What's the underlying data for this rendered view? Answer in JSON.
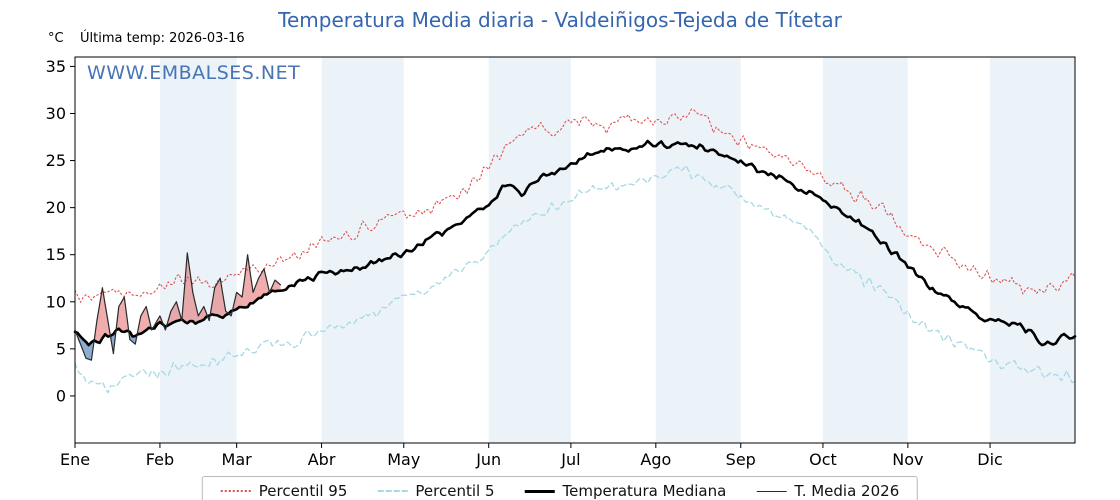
{
  "chart_data": {
    "type": "line",
    "title": "Temperatura Media diaria - Valdeiñigos-Tejeda de Títetar",
    "unit_label": "°C",
    "last_temp_label": "Última temp: 2026-03-16",
    "watermark": "WWW.EMBALSES.NET",
    "x_tick_labels": [
      "Ene",
      "Feb",
      "Mar",
      "Abr",
      "May",
      "Jun",
      "Jul",
      "Ago",
      "Sep",
      "Oct",
      "Nov",
      "Dic"
    ],
    "month_start_days": [
      0,
      31,
      59,
      90,
      120,
      151,
      181,
      212,
      243,
      273,
      304,
      334
    ],
    "days_in_year": 365,
    "ylim": [
      -5,
      36
    ],
    "yticks": [
      0,
      5,
      10,
      15,
      20,
      25,
      30,
      35
    ],
    "band_color": "#ebf3f9",
    "fills": {
      "above_color": "rgba(226,106,106,0.55)",
      "below_color": "rgba(93,137,186,0.70)"
    },
    "series": [
      {
        "name": "Percentil 95",
        "color": "#e05252",
        "style": "dotted",
        "noise": 0.9,
        "anchors": [
          [
            0,
            11
          ],
          [
            6,
            10
          ],
          [
            12,
            11.5
          ],
          [
            20,
            10.5
          ],
          [
            31,
            11.5
          ],
          [
            40,
            12.5
          ],
          [
            50,
            12
          ],
          [
            59,
            13
          ],
          [
            68,
            13.5
          ],
          [
            75,
            14.5
          ],
          [
            82,
            15
          ],
          [
            90,
            16.5
          ],
          [
            100,
            17
          ],
          [
            110,
            18.5
          ],
          [
            120,
            19
          ],
          [
            128,
            19.5
          ],
          [
            135,
            20.5
          ],
          [
            143,
            22
          ],
          [
            151,
            24.5
          ],
          [
            160,
            27
          ],
          [
            168,
            28.5
          ],
          [
            175,
            28
          ],
          [
            181,
            29
          ],
          [
            188,
            29.5
          ],
          [
            195,
            28.5
          ],
          [
            202,
            29.5
          ],
          [
            209,
            29
          ],
          [
            216,
            29.5
          ],
          [
            223,
            30
          ],
          [
            230,
            29
          ],
          [
            237,
            28
          ],
          [
            243,
            27
          ],
          [
            250,
            26.5
          ],
          [
            258,
            25.5
          ],
          [
            265,
            24.5
          ],
          [
            273,
            23
          ],
          [
            280,
            22
          ],
          [
            288,
            21
          ],
          [
            296,
            19.5
          ],
          [
            304,
            17.5
          ],
          [
            312,
            16
          ],
          [
            320,
            14.5
          ],
          [
            328,
            13.5
          ],
          [
            334,
            12.5
          ],
          [
            342,
            12
          ],
          [
            350,
            11
          ],
          [
            357,
            11.5
          ],
          [
            364,
            12.5
          ]
        ]
      },
      {
        "name": "Percentil 5",
        "color": "#a6d9e4",
        "style": "dashed",
        "noise": 0.8,
        "anchors": [
          [
            0,
            3.5
          ],
          [
            5,
            1
          ],
          [
            10,
            0.8
          ],
          [
            16,
            1.5
          ],
          [
            22,
            2.5
          ],
          [
            31,
            2.5
          ],
          [
            38,
            3
          ],
          [
            45,
            3.5
          ],
          [
            52,
            4
          ],
          [
            59,
            4.5
          ],
          [
            66,
            5
          ],
          [
            75,
            5.5
          ],
          [
            82,
            6
          ],
          [
            90,
            7
          ],
          [
            98,
            7.5
          ],
          [
            106,
            8.5
          ],
          [
            114,
            9.5
          ],
          [
            120,
            10.5
          ],
          [
            128,
            11.5
          ],
          [
            135,
            12.5
          ],
          [
            143,
            13.5
          ],
          [
            151,
            15.5
          ],
          [
            158,
            17.5
          ],
          [
            165,
            19
          ],
          [
            172,
            19.5
          ],
          [
            181,
            21
          ],
          [
            190,
            22
          ],
          [
            198,
            22.5
          ],
          [
            206,
            23
          ],
          [
            214,
            23.5
          ],
          [
            222,
            24
          ],
          [
            230,
            23
          ],
          [
            238,
            22
          ],
          [
            243,
            21
          ],
          [
            252,
            20
          ],
          [
            260,
            19
          ],
          [
            268,
            17.5
          ],
          [
            273,
            15.5
          ],
          [
            281,
            13.5
          ],
          [
            289,
            12
          ],
          [
            297,
            10.5
          ],
          [
            304,
            8.5
          ],
          [
            312,
            7
          ],
          [
            320,
            6
          ],
          [
            328,
            5
          ],
          [
            334,
            4
          ],
          [
            342,
            3.2
          ],
          [
            350,
            2.8
          ],
          [
            357,
            2.2
          ],
          [
            364,
            2
          ]
        ]
      },
      {
        "name": "Temperatura Mediana",
        "color": "#000000",
        "style": "solid-thick",
        "noise": 0.45,
        "anchors": [
          [
            0,
            6.8
          ],
          [
            5,
            5.2
          ],
          [
            10,
            6
          ],
          [
            16,
            7.2
          ],
          [
            22,
            6.5
          ],
          [
            31,
            7.5
          ],
          [
            38,
            8
          ],
          [
            45,
            7.8
          ],
          [
            52,
            8.5
          ],
          [
            59,
            9
          ],
          [
            66,
            10
          ],
          [
            75,
            11.5
          ],
          [
            82,
            12
          ],
          [
            90,
            12.8
          ],
          [
            98,
            13.2
          ],
          [
            106,
            13.8
          ],
          [
            114,
            14.5
          ],
          [
            120,
            15.2
          ],
          [
            128,
            16.5
          ],
          [
            135,
            17.5
          ],
          [
            143,
            19
          ],
          [
            151,
            20.5
          ],
          [
            158,
            22.5
          ],
          [
            163,
            21.5
          ],
          [
            170,
            23.5
          ],
          [
            177,
            24
          ],
          [
            181,
            24.8
          ],
          [
            188,
            25.5
          ],
          [
            195,
            26.3
          ],
          [
            202,
            26
          ],
          [
            209,
            26.8
          ],
          [
            216,
            26.5
          ],
          [
            223,
            27
          ],
          [
            230,
            26.5
          ],
          [
            237,
            25.5
          ],
          [
            243,
            24.8
          ],
          [
            250,
            24
          ],
          [
            258,
            23.2
          ],
          [
            265,
            22
          ],
          [
            273,
            20.8
          ],
          [
            280,
            19.5
          ],
          [
            288,
            18
          ],
          [
            296,
            16
          ],
          [
            304,
            13.8
          ],
          [
            312,
            11.5
          ],
          [
            320,
            10
          ],
          [
            328,
            8.8
          ],
          [
            334,
            8
          ],
          [
            342,
            7.8
          ],
          [
            348,
            7
          ],
          [
            354,
            5.5
          ],
          [
            359,
            6
          ],
          [
            364,
            6.5
          ]
        ]
      },
      {
        "name": "T. Media 2026",
        "color": "#2a2a2a",
        "style": "solid-thin",
        "noise": 0,
        "end_day": 75,
        "anchors": [
          [
            0,
            7
          ],
          [
            2,
            5.5
          ],
          [
            4,
            4
          ],
          [
            6,
            3.8
          ],
          [
            8,
            8
          ],
          [
            10,
            11.5
          ],
          [
            12,
            8
          ],
          [
            14,
            4.5
          ],
          [
            16,
            9.5
          ],
          [
            18,
            10.5
          ],
          [
            20,
            6
          ],
          [
            22,
            5.5
          ],
          [
            24,
            8.5
          ],
          [
            26,
            9.5
          ],
          [
            28,
            7
          ],
          [
            31,
            8.5
          ],
          [
            33,
            7
          ],
          [
            35,
            9
          ],
          [
            37,
            10
          ],
          [
            39,
            8
          ],
          [
            41,
            15.2
          ],
          [
            43,
            11
          ],
          [
            45,
            8.5
          ],
          [
            47,
            9.5
          ],
          [
            49,
            8
          ],
          [
            51,
            11.5
          ],
          [
            53,
            12.5
          ],
          [
            55,
            9
          ],
          [
            57,
            8.5
          ],
          [
            59,
            11
          ],
          [
            61,
            10.5
          ],
          [
            63,
            15
          ],
          [
            65,
            11
          ],
          [
            67,
            12.5
          ],
          [
            69,
            13.5
          ],
          [
            71,
            11
          ],
          [
            73,
            12.3
          ],
          [
            75,
            11.8
          ]
        ]
      }
    ]
  }
}
